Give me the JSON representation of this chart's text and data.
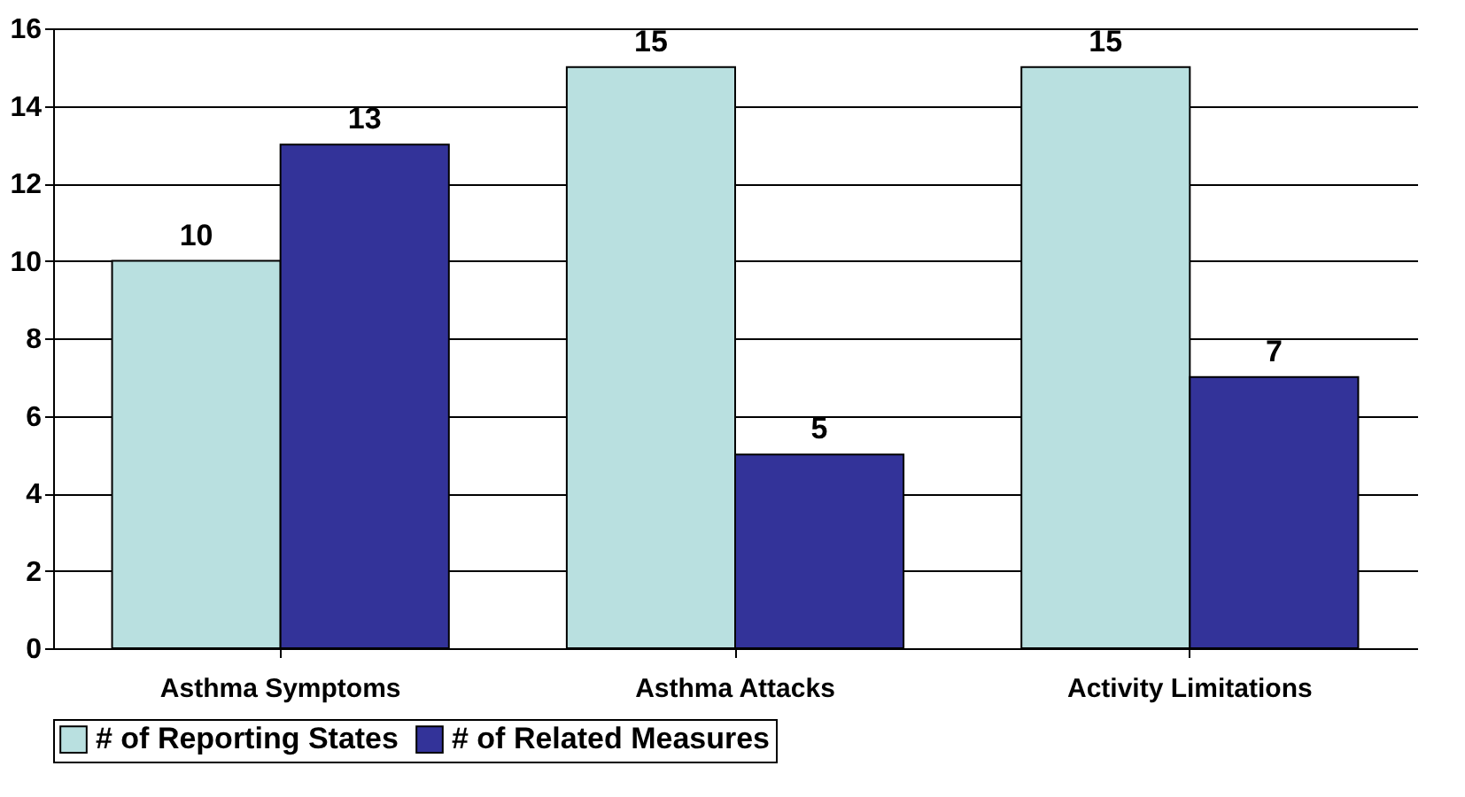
{
  "chart_data": {
    "type": "bar",
    "categories": [
      "Asthma Symptoms",
      "Asthma Attacks",
      "Activity Limitations"
    ],
    "series": [
      {
        "name": "# of Reporting States",
        "color": "#b9e0e0",
        "values": [
          10,
          15,
          15
        ]
      },
      {
        "name": "# of Related Measures",
        "color": "#333399",
        "values": [
          13,
          5,
          7
        ]
      }
    ],
    "ylim": [
      0,
      16
    ],
    "yticks": [
      0,
      2,
      4,
      6,
      8,
      10,
      12,
      14,
      16
    ],
    "grid": "y",
    "legend": "bottom",
    "data_labels": true
  }
}
